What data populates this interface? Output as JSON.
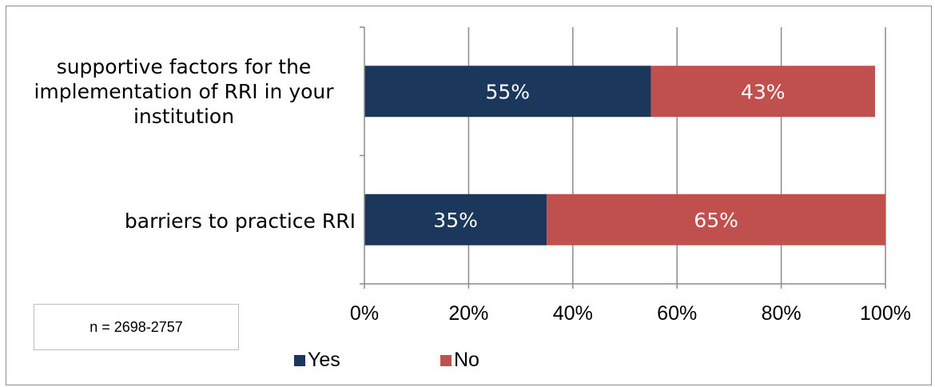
{
  "chart_data": {
    "type": "bar",
    "orientation": "horizontal",
    "stacked": true,
    "categories": [
      "supportive factors for the implementation of RRI in your institution",
      "barriers to practice RRI"
    ],
    "series": [
      {
        "name": "Yes",
        "values": [
          55,
          35
        ],
        "labels": [
          "55%",
          "35%"
        ],
        "color": "#1b375c"
      },
      {
        "name": "No",
        "values": [
          43,
          65
        ],
        "labels": [
          "43%",
          "65%"
        ],
        "color": "#c0504d"
      }
    ],
    "xlim": [
      0,
      100
    ],
    "xticks": [
      "0%",
      "20%",
      "40%",
      "60%",
      "80%",
      "100%"
    ],
    "grid": true,
    "legend": "bottom",
    "annotation": "n = 2698-2757"
  }
}
